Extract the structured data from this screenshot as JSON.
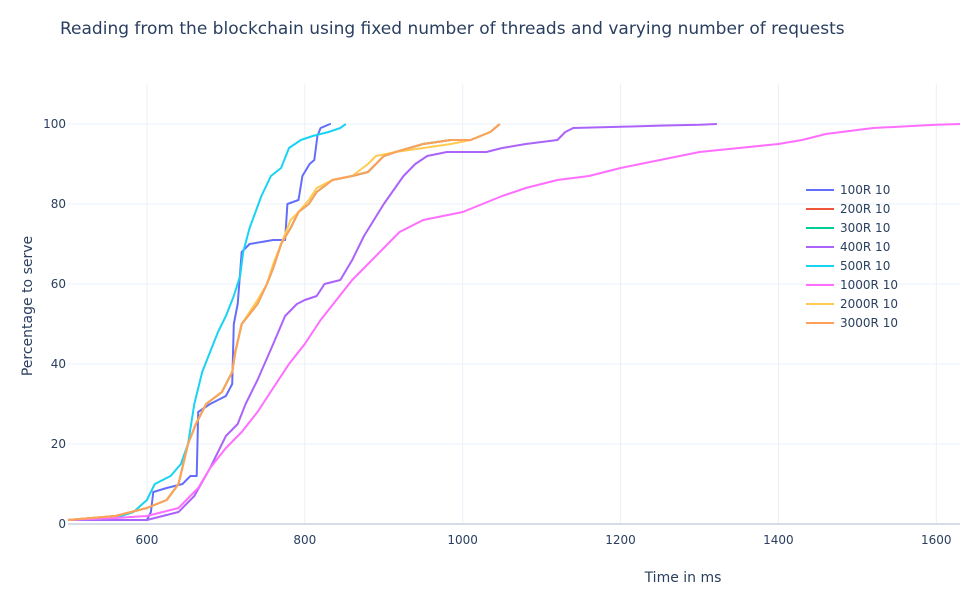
{
  "chart_data": {
    "type": "line",
    "title": "Reading from the blockchain using fixed number of threads and varying number of requests",
    "xlabel": "Time in ms",
    "ylabel": "Percentage to serve",
    "xlim": [
      500,
      1630
    ],
    "ylim": [
      0,
      110
    ],
    "x_ticks": [
      600,
      800,
      1000,
      1200,
      1400,
      1600
    ],
    "y_ticks": [
      0,
      20,
      40,
      60,
      80,
      100
    ],
    "grid": true,
    "legend_position": "right",
    "series": [
      {
        "name": "100R 10",
        "color": "#636efa",
        "points": [
          [
            500,
            1
          ],
          [
            600,
            1
          ],
          [
            605,
            3
          ],
          [
            608,
            8
          ],
          [
            625,
            9
          ],
          [
            645,
            10
          ],
          [
            655,
            12
          ],
          [
            663,
            12
          ],
          [
            665,
            28
          ],
          [
            680,
            30
          ],
          [
            700,
            32
          ],
          [
            708,
            35
          ],
          [
            710,
            50
          ],
          [
            715,
            55
          ],
          [
            720,
            68
          ],
          [
            730,
            70
          ],
          [
            760,
            71
          ],
          [
            775,
            71
          ],
          [
            778,
            80
          ],
          [
            792,
            81
          ],
          [
            797,
            87
          ],
          [
            806,
            90
          ],
          [
            812,
            91
          ],
          [
            816,
            97
          ],
          [
            820,
            99
          ],
          [
            832,
            100
          ],
          [
            833,
            100
          ]
        ]
      },
      {
        "name": "200R 10",
        "color": "#ef553b",
        "points": [
          [
            500,
            1
          ],
          [
            560,
            2
          ],
          [
            600,
            4
          ],
          [
            625,
            6
          ],
          [
            640,
            10
          ],
          [
            652,
            20
          ],
          [
            662,
            25
          ],
          [
            675,
            30
          ],
          [
            695,
            33
          ],
          [
            708,
            38
          ],
          [
            712,
            43
          ],
          [
            720,
            50
          ],
          [
            740,
            55
          ],
          [
            752,
            60
          ],
          [
            760,
            64
          ],
          [
            770,
            70
          ],
          [
            782,
            74
          ],
          [
            792,
            78
          ],
          [
            805,
            80
          ],
          [
            815,
            83
          ],
          [
            835,
            86
          ],
          [
            860,
            87
          ],
          [
            880,
            88
          ],
          [
            900,
            92
          ],
          [
            915,
            93
          ],
          [
            950,
            95
          ],
          [
            985,
            96
          ],
          [
            1010,
            96
          ],
          [
            1035,
            98
          ],
          [
            1047,
            100
          ]
        ]
      },
      {
        "name": "300R 10",
        "color": "#00cc96",
        "points": [
          [
            500,
            1
          ],
          [
            560,
            2
          ],
          [
            600,
            4
          ],
          [
            625,
            6
          ],
          [
            640,
            10
          ],
          [
            652,
            20
          ],
          [
            662,
            25
          ],
          [
            675,
            30
          ],
          [
            695,
            33
          ],
          [
            708,
            38
          ],
          [
            712,
            43
          ],
          [
            720,
            50
          ],
          [
            740,
            55
          ],
          [
            752,
            60
          ],
          [
            760,
            64
          ],
          [
            770,
            70
          ],
          [
            782,
            74
          ],
          [
            792,
            78
          ],
          [
            805,
            80
          ],
          [
            815,
            83
          ],
          [
            835,
            86
          ],
          [
            860,
            87
          ],
          [
            880,
            88
          ],
          [
            900,
            92
          ],
          [
            915,
            93
          ],
          [
            950,
            95
          ],
          [
            985,
            96
          ],
          [
            1010,
            96
          ],
          [
            1035,
            98
          ],
          [
            1047,
            100
          ]
        ]
      },
      {
        "name": "400R 10",
        "color": "#ab63fa",
        "points": [
          [
            500,
            1
          ],
          [
            600,
            1
          ],
          [
            640,
            3
          ],
          [
            660,
            7
          ],
          [
            680,
            14
          ],
          [
            700,
            22
          ],
          [
            715,
            25
          ],
          [
            725,
            30
          ],
          [
            740,
            36
          ],
          [
            760,
            45
          ],
          [
            775,
            52
          ],
          [
            790,
            55
          ],
          [
            800,
            56
          ],
          [
            815,
            57
          ],
          [
            825,
            60
          ],
          [
            845,
            61
          ],
          [
            860,
            66
          ],
          [
            875,
            72
          ],
          [
            900,
            80
          ],
          [
            925,
            87
          ],
          [
            940,
            90
          ],
          [
            955,
            92
          ],
          [
            980,
            93
          ],
          [
            1000,
            93
          ],
          [
            1030,
            93
          ],
          [
            1050,
            94
          ],
          [
            1080,
            95
          ],
          [
            1120,
            96
          ],
          [
            1130,
            98
          ],
          [
            1140,
            99
          ],
          [
            1200,
            99.3
          ],
          [
            1250,
            99.6
          ],
          [
            1300,
            99.8
          ],
          [
            1322,
            100
          ]
        ]
      },
      {
        "name": "500R 10",
        "color": "#19d3f3",
        "points": [
          [
            500,
            1
          ],
          [
            560,
            1.5
          ],
          [
            583,
            3
          ],
          [
            600,
            6
          ],
          [
            610,
            10
          ],
          [
            630,
            12
          ],
          [
            643,
            15
          ],
          [
            652,
            20
          ],
          [
            660,
            30
          ],
          [
            670,
            38
          ],
          [
            690,
            48
          ],
          [
            700,
            52
          ],
          [
            710,
            57
          ],
          [
            718,
            62
          ],
          [
            722,
            68
          ],
          [
            730,
            74
          ],
          [
            745,
            82
          ],
          [
            757,
            87
          ],
          [
            770,
            89
          ],
          [
            780,
            94
          ],
          [
            795,
            96
          ],
          [
            810,
            97
          ],
          [
            830,
            98
          ],
          [
            845,
            99
          ],
          [
            852,
            100
          ]
        ]
      },
      {
        "name": "1000R 10",
        "color": "#ff6eff",
        "points": [
          [
            500,
            1
          ],
          [
            560,
            1.5
          ],
          [
            600,
            2
          ],
          [
            640,
            4
          ],
          [
            665,
            9
          ],
          [
            680,
            14
          ],
          [
            700,
            19
          ],
          [
            720,
            23
          ],
          [
            740,
            28
          ],
          [
            760,
            34
          ],
          [
            780,
            40
          ],
          [
            800,
            45
          ],
          [
            820,
            51
          ],
          [
            840,
            56
          ],
          [
            860,
            61
          ],
          [
            880,
            65
          ],
          [
            900,
            69
          ],
          [
            920,
            73
          ],
          [
            950,
            76
          ],
          [
            1000,
            78
          ],
          [
            1050,
            82
          ],
          [
            1080,
            84
          ],
          [
            1120,
            86
          ],
          [
            1160,
            87
          ],
          [
            1200,
            89
          ],
          [
            1250,
            91
          ],
          [
            1300,
            93
          ],
          [
            1350,
            94
          ],
          [
            1400,
            95
          ],
          [
            1430,
            96
          ],
          [
            1460,
            97.5
          ],
          [
            1520,
            99
          ],
          [
            1600,
            99.8
          ],
          [
            1630,
            100
          ]
        ]
      },
      {
        "name": "2000R 10",
        "color": "#fecb52",
        "points": [
          [
            500,
            1
          ],
          [
            560,
            2
          ],
          [
            600,
            4
          ],
          [
            625,
            6
          ],
          [
            640,
            10
          ],
          [
            652,
            20
          ],
          [
            662,
            25
          ],
          [
            675,
            30
          ],
          [
            695,
            33
          ],
          [
            708,
            38
          ],
          [
            712,
            43
          ],
          [
            720,
            50
          ],
          [
            740,
            56
          ],
          [
            752,
            60
          ],
          [
            760,
            65
          ],
          [
            770,
            70
          ],
          [
            782,
            76
          ],
          [
            792,
            78
          ],
          [
            805,
            81
          ],
          [
            815,
            84
          ],
          [
            835,
            86
          ],
          [
            860,
            87
          ],
          [
            880,
            90
          ],
          [
            890,
            92
          ],
          [
            915,
            93
          ],
          [
            950,
            94
          ],
          [
            985,
            95
          ],
          [
            1010,
            96
          ],
          [
            1035,
            98
          ],
          [
            1047,
            100
          ]
        ]
      },
      {
        "name": "3000R 10",
        "color": "#ffa15a",
        "points": [
          [
            500,
            1
          ],
          [
            560,
            2
          ],
          [
            600,
            4
          ],
          [
            625,
            6
          ],
          [
            640,
            10
          ],
          [
            652,
            20
          ],
          [
            662,
            25
          ],
          [
            675,
            30
          ],
          [
            695,
            33
          ],
          [
            708,
            38
          ],
          [
            712,
            43
          ],
          [
            720,
            50
          ],
          [
            740,
            55
          ],
          [
            752,
            60
          ],
          [
            760,
            64
          ],
          [
            770,
            70
          ],
          [
            782,
            74
          ],
          [
            792,
            78
          ],
          [
            805,
            80
          ],
          [
            815,
            83
          ],
          [
            835,
            86
          ],
          [
            860,
            87
          ],
          [
            880,
            88
          ],
          [
            900,
            92
          ],
          [
            915,
            93
          ],
          [
            950,
            95
          ],
          [
            985,
            96
          ],
          [
            1010,
            96
          ],
          [
            1035,
            98
          ],
          [
            1047,
            100
          ]
        ]
      }
    ]
  }
}
